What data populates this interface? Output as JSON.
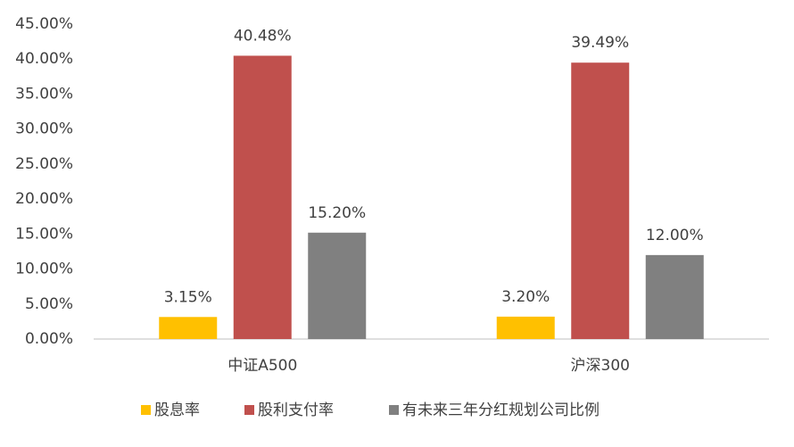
{
  "chart_data": {
    "type": "bar",
    "categories": [
      "中证A500",
      "沪深300"
    ],
    "series": [
      {
        "name": "股息率",
        "color": "#FFC000",
        "values": [
          3.15,
          3.2
        ],
        "value_labels": [
          "3.15%",
          "3.20%"
        ]
      },
      {
        "name": "股利支付率",
        "color": "#C0504D",
        "values": [
          40.48,
          39.49
        ],
        "value_labels": [
          "40.48%",
          "39.49%"
        ]
      },
      {
        "name": "有未来三年分红规划公司比例",
        "color": "#808080",
        "values": [
          15.2,
          12
        ],
        "value_labels": [
          "15.20%",
          "12.00%"
        ]
      }
    ],
    "ylim": [
      0,
      45
    ],
    "yticks": [
      {
        "value": 0,
        "label": "0.00%"
      },
      {
        "value": 5,
        "label": "5.00%"
      },
      {
        "value": 10,
        "label": "10.00%"
      },
      {
        "value": 15,
        "label": "15.00%"
      },
      {
        "value": 20,
        "label": "20.00%"
      },
      {
        "value": 25,
        "label": "25.00%"
      },
      {
        "value": 30,
        "label": "30.00%"
      },
      {
        "value": 35,
        "label": "35.00%"
      },
      {
        "value": 40,
        "label": "40.00%"
      },
      {
        "value": 45,
        "label": "45.00%"
      }
    ],
    "grid": false,
    "legend": "bottom"
  }
}
